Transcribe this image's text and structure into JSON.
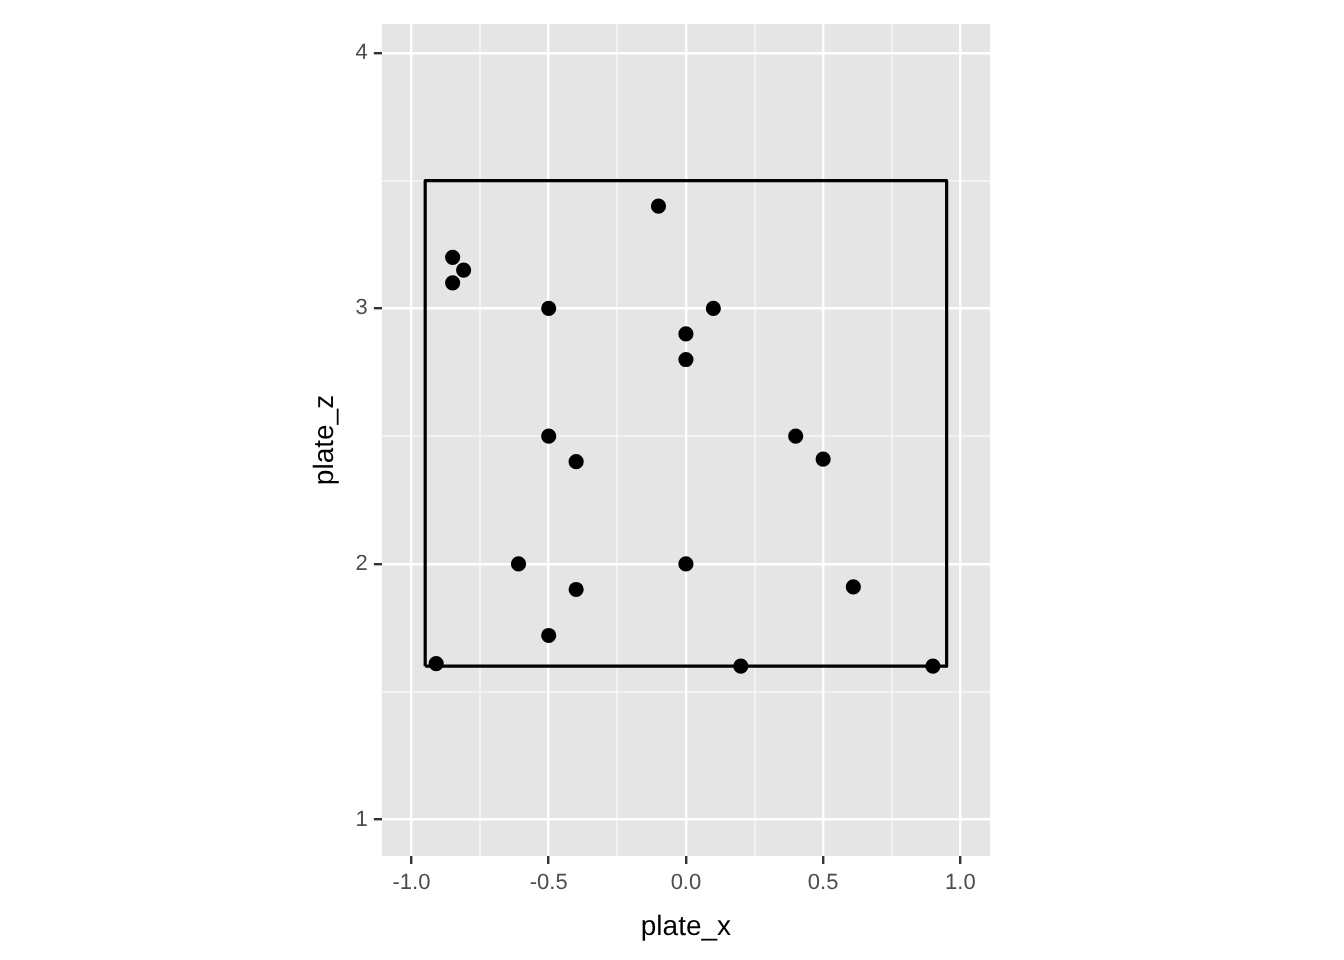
{
  "chart_data": {
    "type": "scatter",
    "xlabel": "plate_x",
    "ylabel": "plate_z",
    "marker": "circle",
    "grid": true,
    "xlim": [
      -1.108,
      1.108
    ],
    "ylim": [
      0.857,
      4.113
    ],
    "xticks": [
      {
        "value": -1,
        "label": "-1.0"
      },
      {
        "value": -0.75,
        "label": null
      },
      {
        "value": -0.5,
        "label": "-0.5"
      },
      {
        "value": -0.25,
        "label": null
      },
      {
        "value": 0,
        "label": "0.0"
      },
      {
        "value": 0.25,
        "label": null
      },
      {
        "value": 0.5,
        "label": "0.5"
      },
      {
        "value": 0.75,
        "label": null
      },
      {
        "value": 1,
        "label": "1.0"
      }
    ],
    "yticks": [
      1,
      {
        "value": 1.5,
        "label": null
      },
      2,
      {
        "value": 2.5,
        "label": null
      },
      3,
      {
        "value": 3.5,
        "label": null
      },
      4
    ],
    "series": [
      {
        "color": "#000000",
        "x": [
          -0.91,
          -0.85,
          -0.81,
          -0.85,
          -0.1,
          -0.5,
          0.1,
          0,
          0,
          -0.5,
          -0.4,
          0.4,
          0.5,
          -0.61,
          0,
          -0.4,
          0.61,
          -0.5,
          0.2,
          0.9
        ],
        "values": [
          1.61,
          3.2,
          3.15,
          3.1,
          3.4,
          3.0,
          3.0,
          2.9,
          2.8,
          2.5,
          2.4,
          2.5,
          2.41,
          2.0,
          2.0,
          1.9,
          1.91,
          1.72,
          1.6,
          1.6
        ]
      },
      {
        "type": "line",
        "color": "#000000",
        "marker": "none",
        "x": [
          -0.95,
          -0.95,
          0.95,
          0.95
        ],
        "values": [
          1.6,
          3.5,
          3.5,
          1.6
        ]
      },
      {
        "type": "line",
        "color": "#000000",
        "marker": "none",
        "x": [
          -0.95,
          0.95
        ],
        "values": [
          1.6,
          1.6
        ]
      }
    ]
  }
}
